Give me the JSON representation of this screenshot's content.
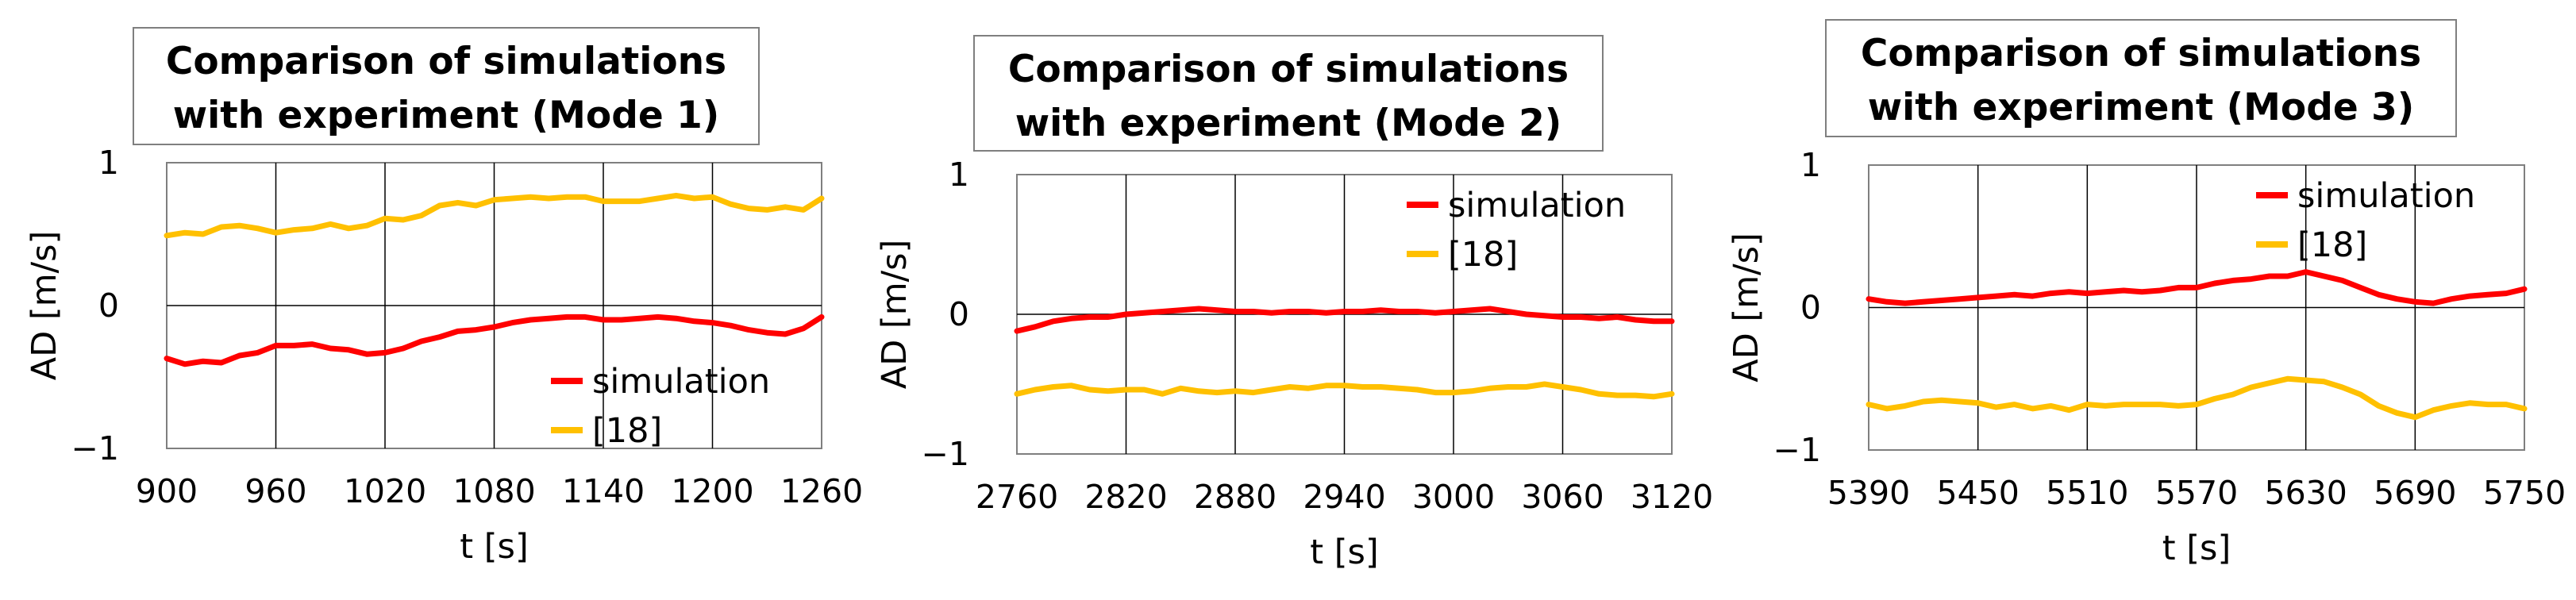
{
  "colors": {
    "simulation": "#ff0000",
    "reference": "#ffc000",
    "grid": "#000000",
    "frame": "#7f7f7f"
  },
  "chart_data": [
    {
      "type": "line",
      "title_lines": [
        "Comparison of simulations",
        "with experiment (Mode 1)"
      ],
      "xlabel": "t [s]",
      "ylabel": "AD [m/s]",
      "xlim": [
        900,
        1260
      ],
      "ylim": [
        -1,
        1
      ],
      "xticks": [
        900,
        960,
        1020,
        1080,
        1140,
        1200,
        1260
      ],
      "xtick_labels": [
        "900",
        "960",
        "1020",
        "1080",
        "1140",
        "1200",
        "1260"
      ],
      "yticks": [
        -1,
        0,
        1
      ],
      "ytick_labels": [
        "−1",
        "0",
        "1"
      ],
      "legend_position": "lower-right",
      "series": [
        {
          "name": "simulation",
          "color": "#ff0000",
          "x": [
            900,
            910,
            920,
            930,
            940,
            950,
            960,
            970,
            980,
            990,
            1000,
            1010,
            1020,
            1030,
            1040,
            1050,
            1060,
            1070,
            1080,
            1090,
            1100,
            1110,
            1120,
            1130,
            1140,
            1150,
            1160,
            1170,
            1180,
            1190,
            1200,
            1210,
            1220,
            1230,
            1240,
            1250,
            1260
          ],
          "values": [
            -0.37,
            -0.41,
            -0.39,
            -0.4,
            -0.35,
            -0.33,
            -0.28,
            -0.28,
            -0.27,
            -0.3,
            -0.31,
            -0.34,
            -0.33,
            -0.3,
            -0.25,
            -0.22,
            -0.18,
            -0.17,
            -0.15,
            -0.12,
            -0.1,
            -0.09,
            -0.08,
            -0.08,
            -0.1,
            -0.1,
            -0.09,
            -0.08,
            -0.09,
            -0.11,
            -0.12,
            -0.14,
            -0.17,
            -0.19,
            -0.2,
            -0.16,
            -0.08
          ]
        },
        {
          "name": "[18]",
          "color": "#ffc000",
          "x": [
            900,
            910,
            920,
            930,
            940,
            950,
            960,
            970,
            980,
            990,
            1000,
            1010,
            1020,
            1030,
            1040,
            1050,
            1060,
            1070,
            1080,
            1090,
            1100,
            1110,
            1120,
            1130,
            1140,
            1150,
            1160,
            1170,
            1180,
            1190,
            1200,
            1210,
            1220,
            1230,
            1240,
            1250,
            1260
          ],
          "values": [
            0.49,
            0.51,
            0.5,
            0.55,
            0.56,
            0.54,
            0.51,
            0.53,
            0.54,
            0.57,
            0.54,
            0.56,
            0.61,
            0.6,
            0.63,
            0.7,
            0.72,
            0.7,
            0.74,
            0.75,
            0.76,
            0.75,
            0.76,
            0.76,
            0.73,
            0.73,
            0.73,
            0.75,
            0.77,
            0.75,
            0.76,
            0.71,
            0.68,
            0.67,
            0.69,
            0.67,
            0.75
          ]
        }
      ]
    },
    {
      "type": "line",
      "title_lines": [
        "Comparison of simulations",
        "with experiment (Mode 2)"
      ],
      "xlabel": "t [s]",
      "ylabel": "AD [m/s]",
      "xlim": [
        2760,
        3120
      ],
      "ylim": [
        -1,
        1
      ],
      "xticks": [
        2760,
        2820,
        2880,
        2940,
        3000,
        3060,
        3120
      ],
      "xtick_labels": [
        "2760",
        "2820",
        "2880",
        "2940",
        "3000",
        "3060",
        "3120"
      ],
      "yticks": [
        -1,
        0,
        1
      ],
      "ytick_labels": [
        "−1",
        "0",
        "1"
      ],
      "legend_position": "top-right",
      "series": [
        {
          "name": "simulation",
          "color": "#ff0000",
          "x": [
            2760,
            2770,
            2780,
            2790,
            2800,
            2810,
            2820,
            2830,
            2840,
            2850,
            2860,
            2870,
            2880,
            2890,
            2900,
            2910,
            2920,
            2930,
            2940,
            2950,
            2960,
            2970,
            2980,
            2990,
            3000,
            3010,
            3020,
            3030,
            3040,
            3050,
            3060,
            3070,
            3080,
            3090,
            3100,
            3110,
            3120
          ],
          "values": [
            -0.12,
            -0.09,
            -0.05,
            -0.03,
            -0.02,
            -0.02,
            0.0,
            0.01,
            0.02,
            0.03,
            0.04,
            0.03,
            0.02,
            0.02,
            0.01,
            0.02,
            0.02,
            0.01,
            0.02,
            0.02,
            0.03,
            0.02,
            0.02,
            0.01,
            0.02,
            0.03,
            0.04,
            0.02,
            0.0,
            -0.01,
            -0.02,
            -0.02,
            -0.03,
            -0.02,
            -0.04,
            -0.05,
            -0.05
          ]
        },
        {
          "name": "[18]",
          "color": "#ffc000",
          "x": [
            2760,
            2770,
            2780,
            2790,
            2800,
            2810,
            2820,
            2830,
            2840,
            2850,
            2860,
            2870,
            2880,
            2890,
            2900,
            2910,
            2920,
            2930,
            2940,
            2950,
            2960,
            2970,
            2980,
            2990,
            3000,
            3010,
            3020,
            3030,
            3040,
            3050,
            3060,
            3070,
            3080,
            3090,
            3100,
            3110,
            3120
          ],
          "values": [
            -0.57,
            -0.54,
            -0.52,
            -0.51,
            -0.54,
            -0.55,
            -0.54,
            -0.54,
            -0.57,
            -0.53,
            -0.55,
            -0.56,
            -0.55,
            -0.56,
            -0.54,
            -0.52,
            -0.53,
            -0.51,
            -0.51,
            -0.52,
            -0.52,
            -0.53,
            -0.54,
            -0.56,
            -0.56,
            -0.55,
            -0.53,
            -0.52,
            -0.52,
            -0.5,
            -0.52,
            -0.54,
            -0.57,
            -0.58,
            -0.58,
            -0.59,
            -0.57
          ]
        }
      ]
    },
    {
      "type": "line",
      "title_lines": [
        "Comparison of simulations",
        "with experiment (Mode 3)"
      ],
      "xlabel": "t [s]",
      "ylabel": "AD [m/s]",
      "xlim": [
        5390,
        5750
      ],
      "ylim": [
        -1,
        1
      ],
      "xticks": [
        5390,
        5450,
        5510,
        5570,
        5630,
        5690,
        5750
      ],
      "xtick_labels": [
        "5390",
        "5450",
        "5510",
        "5570",
        "5630",
        "5690",
        "5750"
      ],
      "yticks": [
        -1,
        0,
        1
      ],
      "ytick_labels": [
        "−1",
        "0",
        "1"
      ],
      "legend_position": "top-right",
      "series": [
        {
          "name": "simulation",
          "color": "#ff0000",
          "x": [
            5390,
            5400,
            5410,
            5420,
            5430,
            5440,
            5450,
            5460,
            5470,
            5480,
            5490,
            5500,
            5510,
            5520,
            5530,
            5540,
            5550,
            5560,
            5570,
            5580,
            5590,
            5600,
            5610,
            5620,
            5630,
            5640,
            5650,
            5660,
            5670,
            5680,
            5690,
            5700,
            5710,
            5720,
            5730,
            5740,
            5750
          ],
          "values": [
            0.06,
            0.04,
            0.03,
            0.04,
            0.05,
            0.06,
            0.07,
            0.08,
            0.09,
            0.08,
            0.1,
            0.11,
            0.1,
            0.11,
            0.12,
            0.11,
            0.12,
            0.14,
            0.14,
            0.17,
            0.19,
            0.2,
            0.22,
            0.22,
            0.25,
            0.22,
            0.19,
            0.14,
            0.09,
            0.06,
            0.04,
            0.03,
            0.06,
            0.08,
            0.09,
            0.1,
            0.13
          ]
        },
        {
          "name": "[18]",
          "color": "#ffc000",
          "x": [
            5390,
            5400,
            5410,
            5420,
            5430,
            5440,
            5450,
            5460,
            5470,
            5480,
            5490,
            5500,
            5510,
            5520,
            5530,
            5540,
            5550,
            5560,
            5570,
            5580,
            5590,
            5600,
            5610,
            5620,
            5630,
            5640,
            5650,
            5660,
            5670,
            5680,
            5690,
            5700,
            5710,
            5720,
            5730,
            5740,
            5750
          ],
          "values": [
            -0.68,
            -0.71,
            -0.69,
            -0.66,
            -0.65,
            -0.66,
            -0.67,
            -0.7,
            -0.68,
            -0.71,
            -0.69,
            -0.72,
            -0.68,
            -0.69,
            -0.68,
            -0.68,
            -0.68,
            -0.69,
            -0.68,
            -0.64,
            -0.61,
            -0.56,
            -0.53,
            -0.5,
            -0.51,
            -0.52,
            -0.56,
            -0.61,
            -0.69,
            -0.74,
            -0.77,
            -0.72,
            -0.69,
            -0.67,
            -0.68,
            -0.68,
            -0.71
          ]
        }
      ]
    }
  ]
}
